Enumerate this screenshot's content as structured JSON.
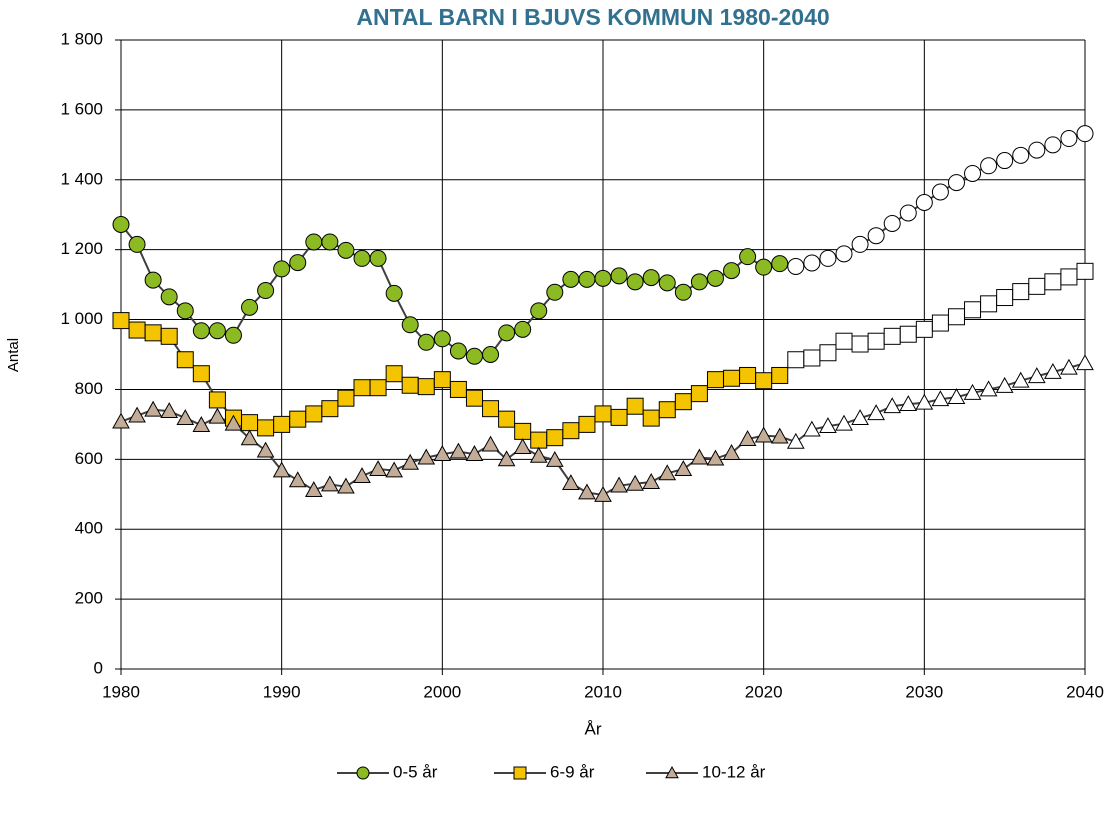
{
  "chart_data": {
    "type": "line",
    "title": "ANTAL BARN I BJUVS KOMMUN 1980-2040",
    "x_label": "År",
    "y_label": "Antal",
    "x": [
      1980,
      1981,
      1982,
      1983,
      1984,
      1985,
      1986,
      1987,
      1988,
      1989,
      1990,
      1991,
      1992,
      1993,
      1994,
      1995,
      1996,
      1997,
      1998,
      1999,
      2000,
      2001,
      2002,
      2003,
      2004,
      2005,
      2006,
      2007,
      2008,
      2009,
      2010,
      2011,
      2012,
      2013,
      2014,
      2015,
      2016,
      2017,
      2018,
      2019,
      2020,
      2021,
      2022,
      2023,
      2024,
      2025,
      2026,
      2027,
      2028,
      2029,
      2030,
      2031,
      2032,
      2033,
      2034,
      2035,
      2036,
      2037,
      2038,
      2039,
      2040
    ],
    "series": [
      {
        "name": "0-5 år",
        "color": "#8cba22",
        "marker": "circle",
        "values": [
          1272,
          1215,
          1113,
          1065,
          1025,
          968,
          968,
          955,
          1035,
          1083,
          1145,
          1163,
          1222,
          1222,
          1198,
          1175,
          1175,
          1075,
          985,
          935,
          945,
          910,
          895,
          900,
          962,
          972,
          1025,
          1078,
          1115,
          1115,
          1118,
          1125,
          1108,
          1120,
          1105,
          1078,
          1108,
          1118,
          1140,
          1180,
          1150,
          1160,
          1152,
          1162,
          1175,
          1188,
          1215,
          1240,
          1275,
          1305,
          1335,
          1365,
          1392,
          1418,
          1440,
          1455,
          1470,
          1485,
          1500,
          1518,
          1532
        ]
      },
      {
        "name": "6-9 år",
        "color": "#f5c400",
        "marker": "square",
        "values": [
          997,
          970,
          962,
          952,
          885,
          845,
          770,
          718,
          705,
          690,
          700,
          715,
          730,
          745,
          775,
          805,
          805,
          845,
          812,
          808,
          828,
          800,
          775,
          745,
          715,
          680,
          655,
          662,
          682,
          700,
          730,
          720,
          752,
          718,
          742,
          765,
          788,
          828,
          832,
          840,
          825,
          840,
          885,
          890,
          905,
          938,
          930,
          938,
          952,
          958,
          972,
          990,
          1008,
          1028,
          1045,
          1063,
          1080,
          1095,
          1108,
          1122,
          1138
        ]
      },
      {
        "name": "10-12 år",
        "color": "#c4ad98",
        "marker": "triangle",
        "values": [
          708,
          725,
          742,
          738,
          718,
          698,
          722,
          702,
          660,
          625,
          568,
          540,
          512,
          528,
          522,
          552,
          572,
          568,
          590,
          605,
          615,
          622,
          615,
          642,
          600,
          635,
          610,
          598,
          532,
          505,
          498,
          525,
          530,
          535,
          560,
          572,
          605,
          602,
          618,
          658,
          668,
          665,
          650,
          685,
          695,
          702,
          718,
          732,
          752,
          758,
          762,
          772,
          778,
          790,
          800,
          810,
          825,
          838,
          850,
          862,
          875
        ]
      }
    ],
    "projection_start": 2022,
    "projection_color": "#ffffff",
    "line_color": "#404040",
    "xlim": [
      1980,
      2040
    ],
    "xticks": [
      1980,
      1990,
      2000,
      2010,
      2020,
      2030,
      2040
    ],
    "ylim": [
      0,
      1800
    ],
    "yticks": [
      0,
      200,
      400,
      600,
      800,
      {
        "value": 1000,
        "label": "1 000"
      },
      {
        "value": 1200,
        "label": "1 200"
      },
      {
        "value": 1400,
        "label": "1 400"
      },
      {
        "value": 1600,
        "label": "1 600"
      },
      {
        "value": 1800,
        "label": "1 800"
      }
    ],
    "grid": true,
    "legend": "bottom"
  }
}
